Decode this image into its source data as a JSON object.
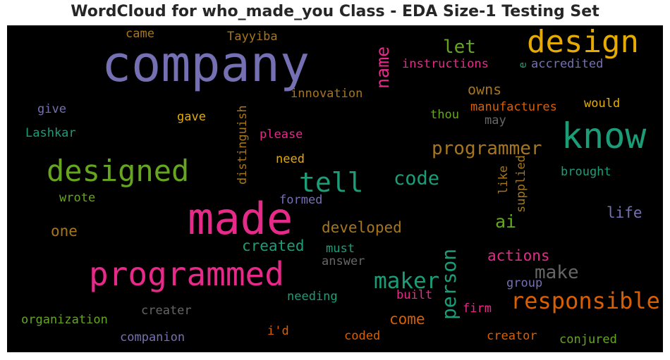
{
  "chart_data": {
    "type": "wordcloud",
    "title": "WordCloud for who_made_you Class - EDA Size-1 Testing Set",
    "words": [
      {
        "text": "company",
        "color": "#7570b3"
      },
      {
        "text": "design",
        "color": "#e6ab02"
      },
      {
        "text": "know",
        "color": "#1b9e77"
      },
      {
        "text": "made",
        "color": "#e7298a"
      },
      {
        "text": "programmed",
        "color": "#e7298a"
      },
      {
        "text": "designed",
        "color": "#66a61e"
      },
      {
        "text": "tell",
        "color": "#1b9e77"
      },
      {
        "text": "responsible",
        "color": "#d95f02"
      },
      {
        "text": "maker",
        "color": "#1b9e77"
      },
      {
        "text": "person",
        "color": "#1b9e77"
      },
      {
        "text": "programmer",
        "color": "#a6761d"
      },
      {
        "text": "code",
        "color": "#1b9e77"
      },
      {
        "text": "name",
        "color": "#e7298a"
      },
      {
        "text": "make",
        "color": "#666666"
      },
      {
        "text": "let",
        "color": "#66a61e"
      },
      {
        "text": "developed",
        "color": "#a6761d"
      },
      {
        "text": "created",
        "color": "#1b9e77"
      },
      {
        "text": "actions",
        "color": "#e7298a"
      },
      {
        "text": "life",
        "color": "#7570b3"
      },
      {
        "text": "ai",
        "color": "#66a61e"
      },
      {
        "text": "owns",
        "color": "#a6761d"
      },
      {
        "text": "come",
        "color": "#d95f02"
      },
      {
        "text": "one",
        "color": "#a6761d"
      },
      {
        "text": "instructions",
        "color": "#e7298a"
      },
      {
        "text": "accredited",
        "color": "#7570b3"
      },
      {
        "text": "innovation",
        "color": "#a6761d"
      },
      {
        "text": "manufactures",
        "color": "#d95f02"
      },
      {
        "text": "distinguish",
        "color": "#a6761d"
      },
      {
        "text": "supplied",
        "color": "#a6761d"
      },
      {
        "text": "Tayyiba",
        "color": "#a6761d"
      },
      {
        "text": "came",
        "color": "#a6761d"
      },
      {
        "text": "give",
        "color": "#7570b3"
      },
      {
        "text": "Lashkar",
        "color": "#1b9e77"
      },
      {
        "text": "gave",
        "color": "#e6ab02"
      },
      {
        "text": "thou",
        "color": "#66a61e"
      },
      {
        "text": "may",
        "color": "#666666"
      },
      {
        "text": "would",
        "color": "#e6ab02"
      },
      {
        "text": "please",
        "color": "#e7298a"
      },
      {
        "text": "need",
        "color": "#e6ab02"
      },
      {
        "text": "brought",
        "color": "#1b9e77"
      },
      {
        "text": "like",
        "color": "#a6761d"
      },
      {
        "text": "wrote",
        "color": "#66a61e"
      },
      {
        "text": "formed",
        "color": "#7570b3"
      },
      {
        "text": "must",
        "color": "#1b9e77"
      },
      {
        "text": "answer",
        "color": "#666666"
      },
      {
        "text": "group",
        "color": "#7570b3"
      },
      {
        "text": "needing",
        "color": "#1b9e77"
      },
      {
        "text": "built",
        "color": "#e7298a"
      },
      {
        "text": "firm",
        "color": "#e7298a"
      },
      {
        "text": "creater",
        "color": "#666666"
      },
      {
        "text": "organization",
        "color": "#66a61e"
      },
      {
        "text": "i'd",
        "color": "#d95f02"
      },
      {
        "text": "coded",
        "color": "#d95f02"
      },
      {
        "text": "creator",
        "color": "#d95f02"
      },
      {
        "text": "conjured",
        "color": "#66a61e"
      },
      {
        "text": "companion",
        "color": "#7570b3"
      },
      {
        "text": "e",
        "color": "#1b9e77"
      }
    ]
  }
}
